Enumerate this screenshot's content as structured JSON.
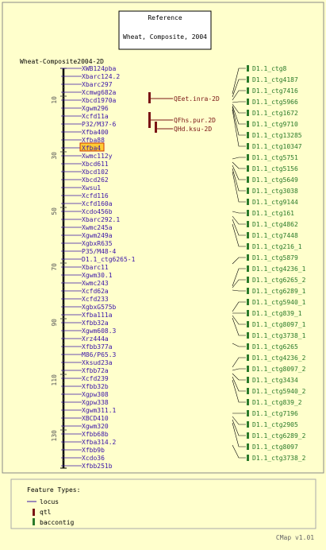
{
  "reference": {
    "heading": "Reference",
    "subtitle": "Wheat, Composite, 2004"
  },
  "map_name": "Wheat-Composite2004-2D",
  "scale_ticks": [
    "10",
    "30",
    "50",
    "70",
    "90",
    "110",
    "130"
  ],
  "highlighted_marker": "Xfba4",
  "markers": [
    "XWB124pba",
    "Xbarc124.2",
    "Xbarc297",
    "Xcmwg682a",
    "Xbcd1970a",
    "Xgwm296",
    "Xcfd11a",
    "P32/M37-6",
    "Xfba400",
    "Xfba88",
    "Xfba4",
    "Xwmc112y",
    "Xbcd611",
    "Xbcd102",
    "Xbcd262",
    "Xwsu1",
    "Xcfd116",
    "Xcfd160a",
    "Xcdo456b",
    "Xbarc292.1",
    "Xwmc245a",
    "Xgwm249a",
    "XgbxR635",
    "P35/M48-4",
    "D1.1_ctg6265-1",
    "Xbarc11",
    "Xgwm30.1",
    "Xwmc243",
    "Xcfd62a",
    "Xcfd233",
    "XgbxG575b",
    "Xfba111a",
    "Xfbb32a",
    "Xgwm608.3",
    "Xrz444a",
    "Xfbb377a",
    "M86/P65.3",
    "Xksud23a",
    "Xfbb72a",
    "Xcfd239",
    "Xfbb32b",
    "Xgpw308",
    "Xgpw338",
    "Xgwm311.1",
    "XBCD410",
    "Xgwm320",
    "Xfbb68b",
    "Xfba314.2",
    "Xfbb9b",
    "Xcdo36",
    "Xfbb251b"
  ],
  "qtls": [
    "QEet.inra-2D",
    "QFhs.pur.2D",
    "QHd.ksu-2D"
  ],
  "contigs": [
    "D1.1_ctg8",
    "D1.1_ctg4187",
    "D1.1_ctg7416",
    "D1.1_ctg5966",
    "D1.1_ctg1672",
    "D1.1_ctg9710",
    "D1.1_ctg13285",
    "D1.1_ctg10347",
    "D1.1_ctg5751",
    "D1.1_ctg5156",
    "D1.1_ctg5649",
    "D1.1_ctg3038",
    "D1.1_ctg9144",
    "D1.1_ctg161",
    "D1.1_ctg4862",
    "D1.1_ctg7448",
    "D1.1_ctg216_1",
    "D1.1_ctg5879",
    "D1.1_ctg4236_1",
    "D1.1_ctg6265_2",
    "D1.1_ctg6289_1",
    "D1.1_ctg5940_1",
    "D1.1_ctg839_1",
    "D1.1_ctg8097_1",
    "D1.1_ctg3738_1",
    "D1.1_ctg6265",
    "D1.1_ctg4236_2",
    "D1.1_ctg8097_2",
    "D1.1_ctg3434",
    "D1.1_ctg5940_2",
    "D1.1_ctg839_2",
    "D1.1_ctg7196",
    "D1.1_ctg2905",
    "D1.1_ctg6289_2",
    "D1.1_ctg8097",
    "D1.1_ctg3738_2"
  ],
  "legend": {
    "heading": "Feature Types:",
    "items": [
      {
        "label": "locus",
        "swatch": "line",
        "color": "#3a14a8"
      },
      {
        "label": "qtl",
        "swatch": "box",
        "color": "#7a1414"
      },
      {
        "label": "baccontig",
        "swatch": "box",
        "color": "#2a7a2a"
      }
    ]
  },
  "footer": "CMap v1.01",
  "colors": {
    "background": "#ffffcc",
    "marker": "#3a14a8",
    "contig": "#2a7a2a",
    "qtl": "#7a1414",
    "highlight_bg": "#ffcc33",
    "highlight_border": "#cc3300"
  }
}
